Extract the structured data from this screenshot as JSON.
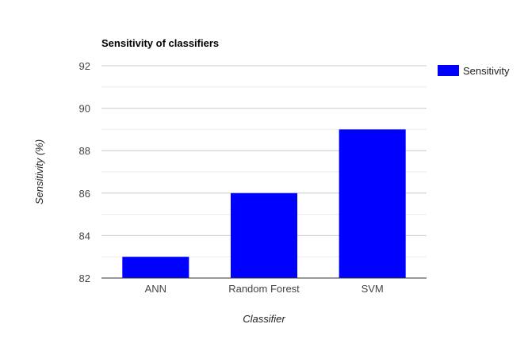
{
  "chart_data": {
    "type": "bar",
    "title": "Sensitivity of classifiers",
    "xlabel": "Classifier",
    "ylabel": "Sensitivity (%)",
    "categories": [
      "ANN",
      "Random Forest",
      "SVM"
    ],
    "series": [
      {
        "name": "Sensitivity",
        "values": [
          83,
          86,
          89
        ],
        "color": "#0000ff"
      }
    ],
    "ylim": [
      82,
      92
    ],
    "yticks": [
      82,
      84,
      86,
      88,
      90,
      92
    ],
    "ytick_labels": [
      "82",
      "84",
      "86",
      "88",
      "90",
      "92"
    ],
    "grid": true,
    "minor_grid": true,
    "legend_position": "right"
  }
}
